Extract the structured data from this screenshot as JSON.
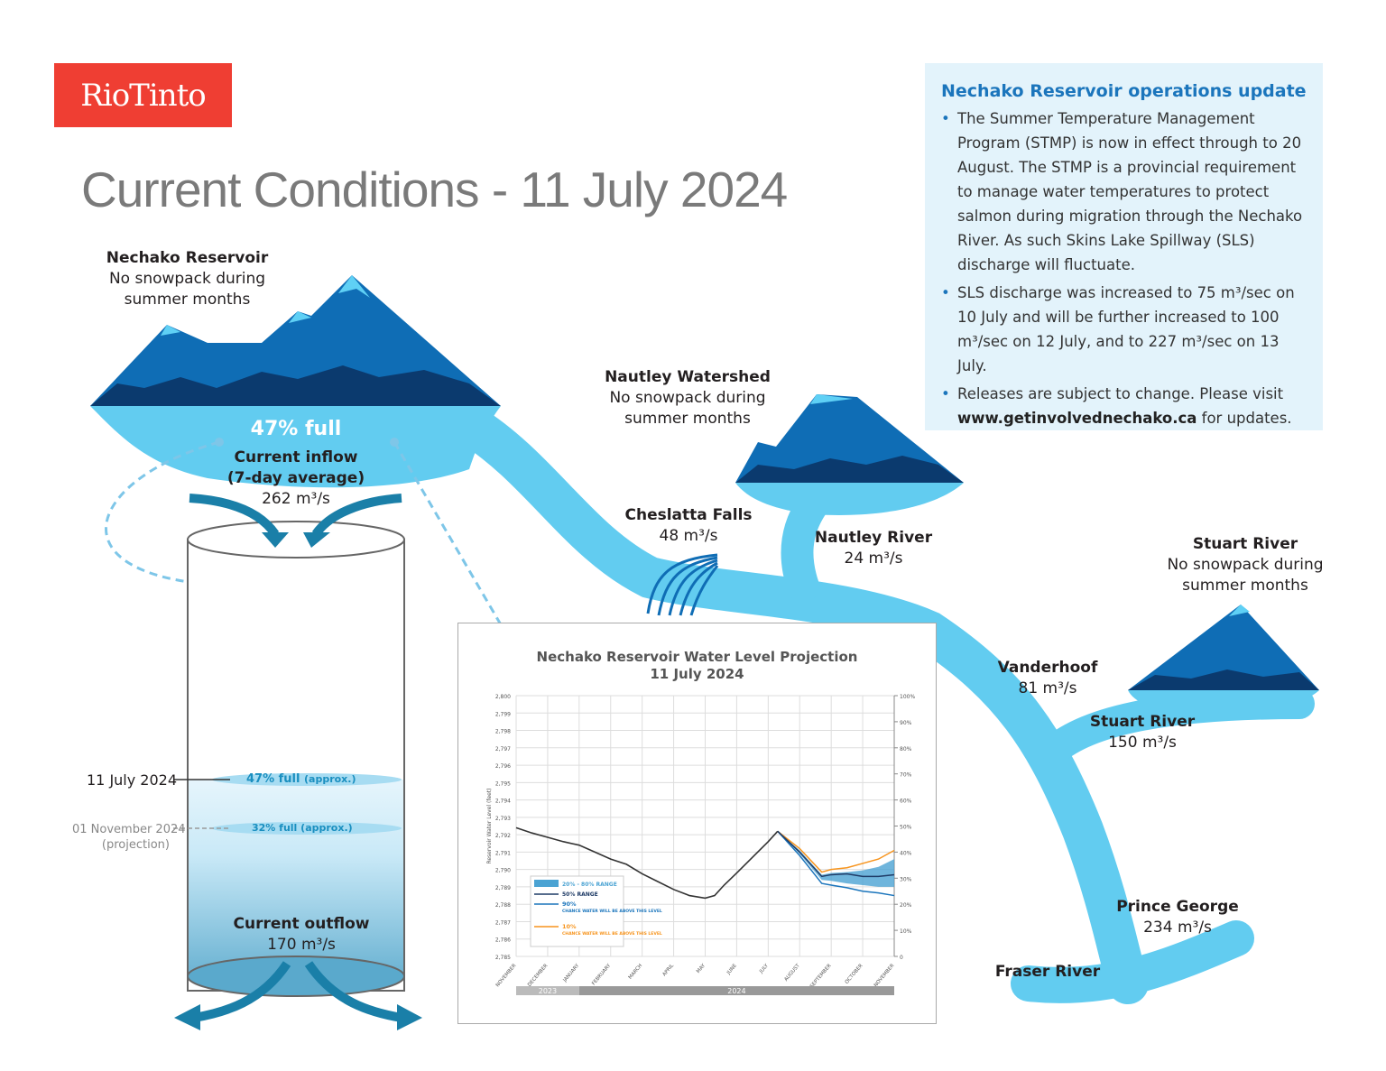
{
  "logo": "RioTinto",
  "title": "Current Conditions - 11 July 2024",
  "reservoir": {
    "name": "Nechako Reservoir",
    "note1": "No snowpack during",
    "note2": "summer months",
    "percent_full": "47% full",
    "inflow_label1": "Current inflow",
    "inflow_label2": "(7-day average)",
    "inflow_value": "262 m³/s",
    "outflow_label": "Current outflow",
    "outflow_value": "170 m³/s",
    "level_now": {
      "date": "11 July 2024",
      "value": "47% full",
      "approx": "(approx.)",
      "fraction": 0.47
    },
    "level_proj": {
      "date": "01 November 2024",
      "note": "(projection)",
      "value": "32% full",
      "approx": "(approx.)",
      "fraction": 0.32
    }
  },
  "nautley": {
    "name": "Nautley Watershed",
    "note1": "No snowpack during",
    "note2": "summer months",
    "river": "Nautley River",
    "flow": "24 m³/s"
  },
  "cheslatta": {
    "name": "Cheslatta Falls",
    "flow": "48 m³/s"
  },
  "stuart": {
    "name": "Stuart River",
    "note1": "No snowpack during",
    "note2": "summer months",
    "river": "Stuart River",
    "flow": "150 m³/s"
  },
  "vanderhoof": {
    "name": "Vanderhoof",
    "flow": "81 m³/s"
  },
  "prince_george": {
    "name": "Prince George",
    "flow": "234 m³/s"
  },
  "fraser": {
    "name": "Fraser River"
  },
  "info": {
    "title": "Nechako Reservoir operations update",
    "bullets": [
      "The Summer Temperature Management Program (STMP) is now in effect through to 20 August. The STMP is a provincial requirement to manage water temperatures to protect salmon during migration through the Nechako River. As such Skins Lake Spillway (SLS) discharge will fluctuate.",
      "SLS discharge was increased to 75 m³/sec on 10 July and will be further increased to 100 m³/sec on 12 July, and to 227 m³/sec on 13 July.",
      "Releases are subject to change. Please visit"
    ],
    "link": "www.getinvolvednechako.ca",
    "link_suffix": " for updates."
  },
  "colors": {
    "red": "#ef3e33",
    "water": "#62ccf0",
    "mountain": "#0f6db5",
    "dark": "#0b3a6e",
    "accent": "#1b75bc",
    "orange": "#f7941d"
  },
  "chart_data": {
    "type": "line",
    "title": "Nechako Reservoir Water Level Projection",
    "subtitle": "11 July 2024",
    "ylabel": "Reservoir Water Level (feet)",
    "ylim": [
      2785,
      2800
    ],
    "yticks": [
      "2,785",
      "2,786",
      "2,787",
      "2,788",
      "2,789",
      "2,790",
      "2,791",
      "2,792",
      "2,793",
      "2,794",
      "2,795",
      "2,796",
      "2,797",
      "2,798",
      "2,799",
      "2,800"
    ],
    "y2ticks": [
      "0",
      "10%",
      "20%",
      "30%",
      "40%",
      "50%",
      "60%",
      "70%",
      "80%",
      "90%",
      "100%"
    ],
    "categories": [
      "NOVEMBER",
      "DECEMBER",
      "JANUARY",
      "FEBRUARY",
      "MARCH",
      "APRIL",
      "MAY",
      "JUNE",
      "JULY",
      "AUGUST",
      "SEPTEMBER",
      "OCTOBER",
      "NOVEMBER"
    ],
    "years": [
      {
        "label": "2023",
        "from": 0,
        "to": 2
      },
      {
        "label": "2024",
        "from": 2,
        "to": 12
      }
    ],
    "legend": {
      "band": "20% - 80% RANGE",
      "median": "50% RANGE",
      "p90": "90%",
      "p90_note": "CHANCE WATER WILL BE ABOVE THIS LEVEL",
      "p10": "10%",
      "p10_note": "CHANCE WATER WILL BE ABOVE THIS LEVEL"
    },
    "observed": {
      "x": [
        0,
        0.5,
        1,
        1.5,
        2,
        2.5,
        3,
        3.5,
        4,
        4.5,
        5,
        5.5,
        6,
        6.3,
        6.6,
        7,
        7.5,
        8,
        8.3
      ],
      "y": [
        2792.4,
        2792.1,
        2791.85,
        2791.6,
        2791.4,
        2791.0,
        2790.6,
        2790.3,
        2789.75,
        2789.3,
        2788.85,
        2788.5,
        2788.35,
        2788.5,
        2789.1,
        2789.8,
        2790.7,
        2791.6,
        2792.2
      ]
    },
    "median": {
      "x": [
        8.3,
        9,
        9.7,
        10,
        10.5,
        11,
        11.5,
        12
      ],
      "y": [
        2792.2,
        2791.0,
        2789.6,
        2789.7,
        2789.75,
        2789.6,
        2789.6,
        2789.7
      ]
    },
    "p10": {
      "x": [
        8.3,
        9,
        9.7,
        10,
        10.5,
        11,
        11.5,
        12
      ],
      "y": [
        2792.2,
        2791.2,
        2789.85,
        2790.0,
        2790.1,
        2790.35,
        2790.6,
        2791.1
      ]
    },
    "p90": {
      "x": [
        8.3,
        9,
        9.7,
        10,
        10.5,
        11,
        11.5,
        12
      ],
      "y": [
        2792.2,
        2790.8,
        2789.2,
        2789.1,
        2788.95,
        2788.75,
        2788.65,
        2788.5
      ]
    },
    "band": {
      "x": [
        8.3,
        9,
        9.7,
        10,
        10.5,
        11,
        11.5,
        12
      ],
      "lower": [
        2792.2,
        2790.9,
        2789.4,
        2789.35,
        2789.2,
        2789.1,
        2789.0,
        2789.0
      ],
      "upper": [
        2792.2,
        2791.1,
        2789.7,
        2789.8,
        2789.85,
        2789.95,
        2790.15,
        2790.6
      ]
    }
  }
}
